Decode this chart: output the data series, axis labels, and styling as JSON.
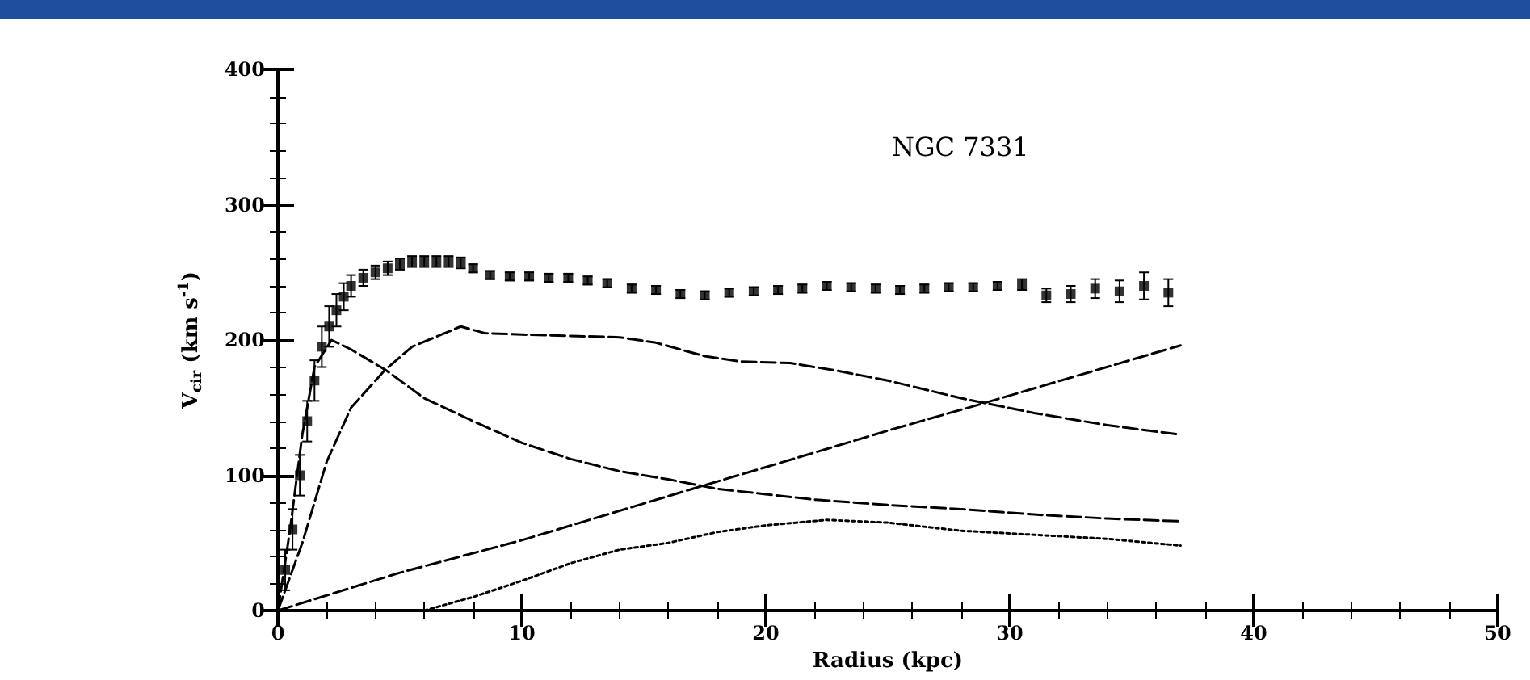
{
  "chart_data": {
    "type": "line",
    "title": "NGC 7331",
    "xlabel": "Radius (kpc)",
    "ylabel": "V$_{cir}$ (km s$^{-1}$)",
    "xlim": [
      0,
      50
    ],
    "xticks": [
      0,
      10,
      20,
      30,
      40,
      50
    ],
    "ylim": [
      0,
      400
    ],
    "yticks": [
      0,
      100,
      200,
      300,
      400
    ],
    "grid": false,
    "series": [
      {
        "type": "scatter",
        "color": "#000000",
        "marker": "square",
        "x": [
          0.3,
          0.6,
          0.9,
          1.2,
          1.5,
          1.8,
          2.1,
          2.4,
          2.7,
          3.0,
          3.5,
          4.0,
          4.5,
          5.0,
          5.5,
          6.0,
          6.5,
          7.0,
          7.5,
          8.0,
          8.7,
          9.5,
          10.3,
          11.1,
          11.9,
          12.7,
          13.5,
          14.5,
          15.5,
          16.5,
          17.5,
          18.5,
          19.5,
          20.5,
          21.5,
          22.5,
          23.5,
          24.5,
          25.5,
          26.5,
          27.5,
          28.5,
          29.5,
          30.5,
          31.5,
          32.5,
          33.5,
          34.5,
          35.5,
          36.5
        ],
        "values": [
          30,
          60,
          100,
          140,
          170,
          195,
          210,
          222,
          232,
          240,
          246,
          250,
          253,
          256,
          258,
          258,
          258,
          258,
          257,
          253,
          248,
          247,
          247,
          246,
          246,
          244,
          242,
          238,
          237,
          234,
          233,
          235,
          236,
          237,
          238,
          240,
          239,
          238,
          237,
          238,
          239,
          239,
          240,
          241,
          233,
          234,
          238,
          236,
          240,
          235
        ],
        "errors": [
          15,
          15,
          15,
          15,
          15,
          15,
          15,
          12,
          10,
          8,
          6,
          5,
          5,
          4,
          4,
          4,
          4,
          4,
          4,
          3,
          3,
          3,
          3,
          3,
          3,
          3,
          3,
          3,
          3,
          3,
          3,
          3,
          3,
          3,
          3,
          3,
          3,
          3,
          3,
          3,
          3,
          3,
          3,
          4,
          5,
          6,
          7,
          8,
          10,
          10
        ]
      },
      {
        "color": "#000000",
        "line_style": "dashed",
        "marker": "none",
        "x": [
          0,
          0.5,
          1,
          1.5,
          2.2,
          3,
          4.4,
          6,
          8,
          10,
          12,
          14,
          16,
          18,
          20,
          22,
          25,
          28,
          31,
          34,
          37
        ],
        "values": [
          0,
          60,
          130,
          180,
          200,
          193,
          178,
          157,
          140,
          124,
          112,
          103,
          97,
          90,
          86,
          82,
          78,
          75,
          71,
          68,
          66
        ]
      },
      {
        "color": "#000000",
        "line_style": "dashed",
        "marker": "none",
        "x": [
          0,
          1,
          2,
          3,
          4.4,
          5.5,
          7.5,
          8.5,
          10,
          12,
          14,
          15.5,
          17.5,
          19,
          21,
          23,
          25,
          28,
          31,
          34,
          37
        ],
        "values": [
          0,
          50,
          110,
          150,
          178,
          195,
          210,
          205,
          204,
          203,
          202,
          198,
          188,
          184,
          183,
          177,
          170,
          157,
          146,
          137,
          130
        ]
      },
      {
        "color": "#000000",
        "line_style": "dashed",
        "marker": "none",
        "x": [
          0,
          5,
          10,
          17,
          20,
          25,
          28.5,
          37
        ],
        "values": [
          0,
          28,
          52,
          90,
          106,
          133,
          151,
          196
        ]
      },
      {
        "color": "#000000",
        "line_style": "dotted",
        "marker": "none",
        "x": [
          6,
          8,
          10,
          12,
          14,
          16,
          18,
          20,
          22.5,
          25,
          28,
          31,
          34,
          37
        ],
        "values": [
          0,
          10,
          22,
          35,
          45,
          50,
          58,
          63,
          67,
          65,
          59,
          56,
          53,
          48
        ]
      }
    ]
  }
}
